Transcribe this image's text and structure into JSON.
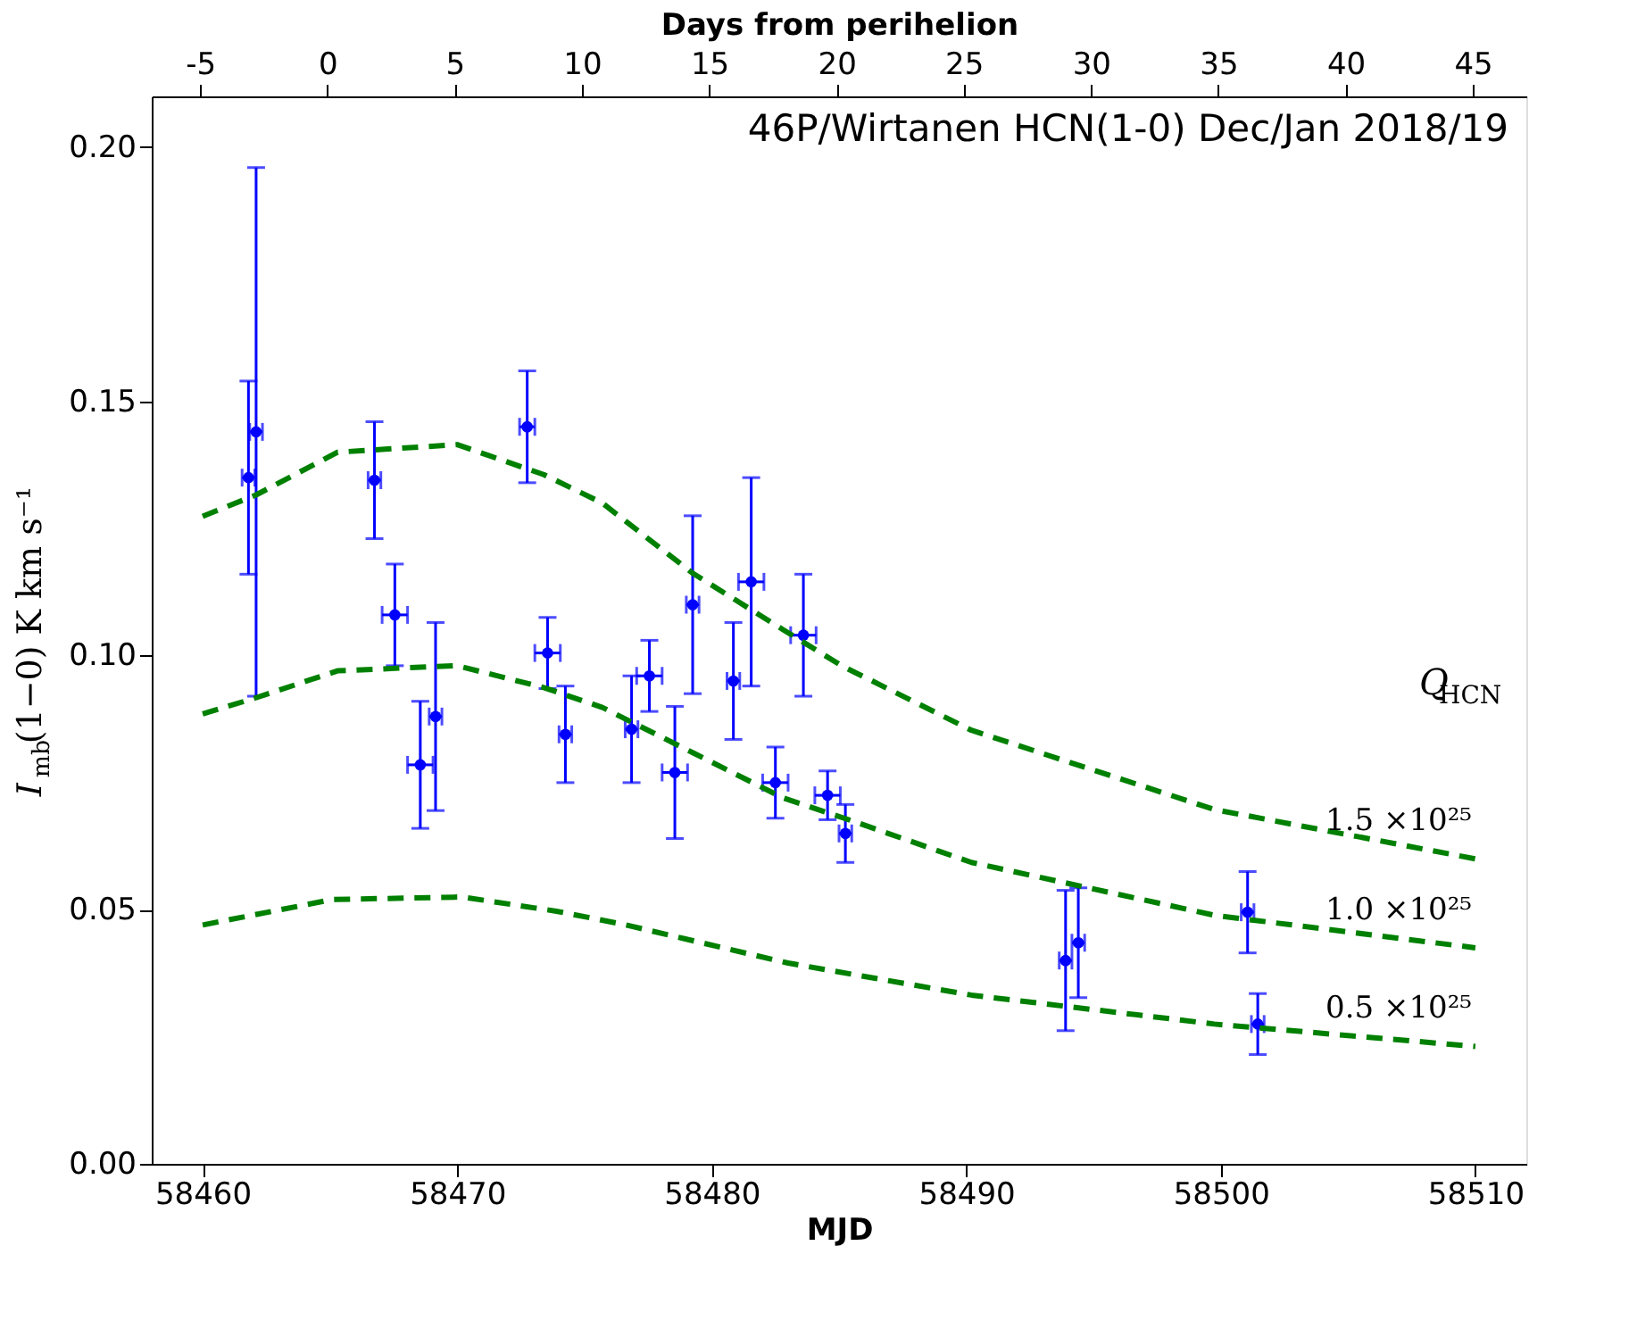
{
  "chart_data": {
    "type": "scatter",
    "title": "46P/Wirtanen  HCN(1-0)  Dec/Jan 2018/19",
    "xlabel": "MJD",
    "ylabel": "I$_{mb}$(1−0)  K km s⁻¹",
    "x2label": "Days from perihelion",
    "xlim": [
      58458,
      58512
    ],
    "xticks": [
      58460,
      58470,
      58480,
      58490,
      58500,
      58510
    ],
    "x2lim": [
      -6.9,
      47.1
    ],
    "x2ticks": [
      -5,
      0,
      5,
      10,
      15,
      20,
      25,
      30,
      35,
      40,
      45
    ],
    "ylim": [
      0,
      0.21
    ],
    "yticks": [
      {
        "value": 0,
        "label": "0.00"
      },
      {
        "value": 0.05,
        "label": "0.05"
      },
      {
        "value": 0.1,
        "label": "0.10"
      },
      {
        "value": 0.15,
        "label": "0.15"
      },
      {
        "value": 0.2,
        "label": "0.20"
      }
    ],
    "grid": false,
    "annotations": [
      "Q$_{HCN}$"
    ],
    "series": [
      {
        "color": "#0000ff",
        "marker": "circle",
        "x": [
          58461.8,
          58462.1,
          58466.75,
          58467.55,
          58468.55,
          58469.15,
          58472.75,
          58473.55,
          58474.25,
          58476.85,
          58477.55,
          58478.55,
          58479.25,
          58480.85,
          58481.55,
          58482.5,
          58483.6,
          58484.55,
          58485.25,
          58493.9,
          58494.4,
          58501.05,
          58501.45
        ],
        "values": [
          0.135,
          0.144,
          0.1345,
          0.108,
          0.0785,
          0.088,
          0.145,
          0.1005,
          0.0845,
          0.0855,
          0.096,
          0.077,
          0.11,
          0.095,
          0.1145,
          0.075,
          0.104,
          0.0725,
          0.065,
          0.04,
          0.0435,
          0.0495,
          0.0275
        ],
        "errors": [
          0.019,
          0.052,
          0.0115,
          0.01,
          0.0125,
          0.0185,
          0.011,
          0.007,
          0.0095,
          0.0105,
          0.007,
          0.013,
          0.0175,
          0.0115,
          0.0205,
          0.007,
          0.012,
          0.0048,
          0.0057,
          0.0138,
          0.0108,
          0.008,
          0.006
        ],
        "xerrors": [
          0.25,
          0.25,
          0.25,
          0.5,
          0.5,
          0.25,
          0.3,
          0.5,
          0.25,
          0.25,
          0.5,
          0.5,
          0.25,
          0.25,
          0.5,
          0.5,
          0.5,
          0.5,
          0.25,
          0.25,
          0.25,
          0.25,
          0.25
        ]
      },
      {
        "type": "line",
        "name": "1.5 ×10²⁵",
        "color": "#008000",
        "line_style": "dashed",
        "x": [
          58460,
          58462.1,
          58465.3,
          58470,
          58473.4,
          58475.7,
          58479.25,
          58482.8,
          58485.1,
          58490.2,
          58499.75,
          58510
        ],
        "values": [
          0.1274,
          0.1316,
          0.14,
          0.1415,
          0.1356,
          0.13,
          0.1162,
          0.1051,
          0.098,
          0.0853,
          0.0697,
          0.06
        ]
      },
      {
        "type": "line",
        "name": "1.0 ×10²⁵",
        "color": "#008000",
        "line_style": "dashed",
        "x": [
          58460,
          58462.1,
          58465.3,
          58470,
          58473.4,
          58475.7,
          58479.25,
          58482.8,
          58485.5,
          58490.2,
          58499.75,
          58510
        ],
        "values": [
          0.0885,
          0.0917,
          0.097,
          0.098,
          0.0937,
          0.0898,
          0.0809,
          0.072,
          0.0675,
          0.0593,
          0.0489,
          0.0425
        ]
      },
      {
        "type": "line",
        "name": "0.5 ×10²⁵",
        "color": "#008000",
        "line_style": "dashed",
        "x": [
          58460,
          58465.1,
          58470.2,
          58473.9,
          58476.55,
          58483,
          58490.2,
          58499.75,
          58510
        ],
        "values": [
          0.047,
          0.052,
          0.0525,
          0.0497,
          0.0471,
          0.0395,
          0.0332,
          0.0275,
          0.0231
        ]
      }
    ]
  }
}
